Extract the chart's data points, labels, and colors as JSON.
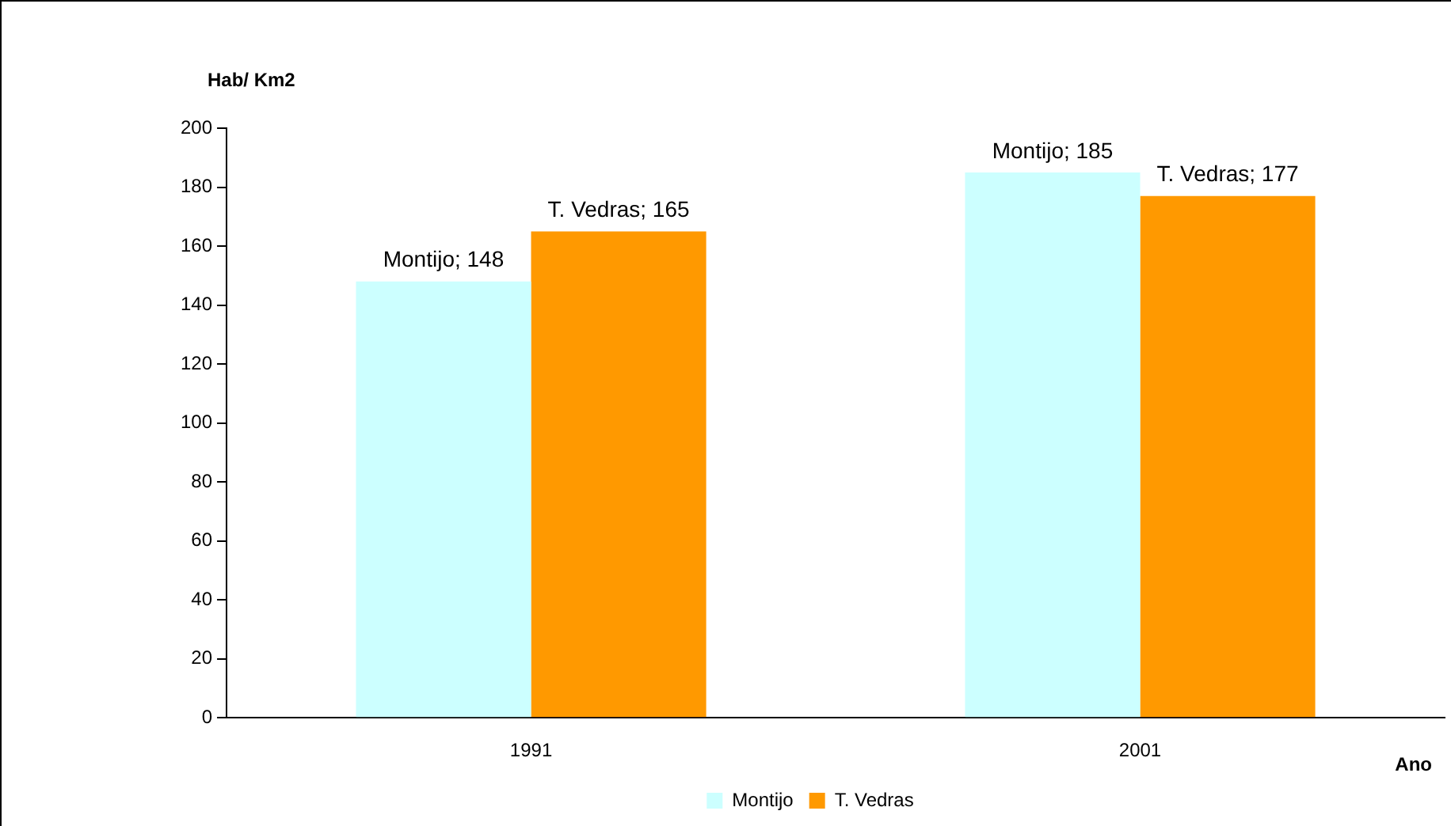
{
  "chart_data": {
    "type": "bar",
    "xlabel": "Ano",
    "ylabel": "Hab/ Km2",
    "categories": [
      "1991",
      "2001"
    ],
    "series": [
      {
        "name": "Montijo",
        "color": "#ccffff",
        "values": [
          148,
          185
        ],
        "value_labels": [
          "Montijo; 148",
          "Montijo; 185"
        ]
      },
      {
        "name": "T. Vedras",
        "color": "#ff9900",
        "values": [
          165,
          177
        ],
        "value_labels": [
          "T. Vedras; 165",
          "T. Vedras; 177"
        ]
      }
    ],
    "ylim": [
      0,
      200
    ],
    "yticks": [
      0,
      20,
      40,
      60,
      80,
      100,
      120,
      140,
      160,
      180,
      200
    ],
    "grid": false,
    "legend": "bottom"
  }
}
